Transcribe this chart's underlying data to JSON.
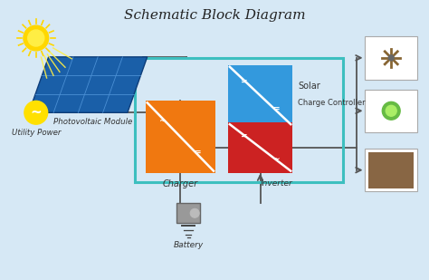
{
  "title": "Schematic Block Diagram",
  "title_fontsize": 11,
  "bg_color": "#d6e8f5",
  "labels": {
    "pv_module": "Photovoltaic Module",
    "utility": "Utility Power",
    "charger": "Charger",
    "solar_label1": "Solar",
    "solar_label2": "Charge Controller",
    "inverter": "Inverter",
    "battery": "Battery"
  },
  "teal_box_color": "#3dbfbf",
  "charger_color": "#f07810",
  "solar_color": "#3399dd",
  "inverter_color": "#cc2222",
  "sun_color": "#FFD700",
  "utility_color": "#FFE000",
  "line_color": "#555555",
  "text_color": "#333333",
  "panel_color": "#1a5fa8",
  "panel_grid_color": "#4a8fd4",
  "battery_body_color": "#999999",
  "load_box_color": "#eeeeee",
  "load_edge_color": "#aaaaaa"
}
